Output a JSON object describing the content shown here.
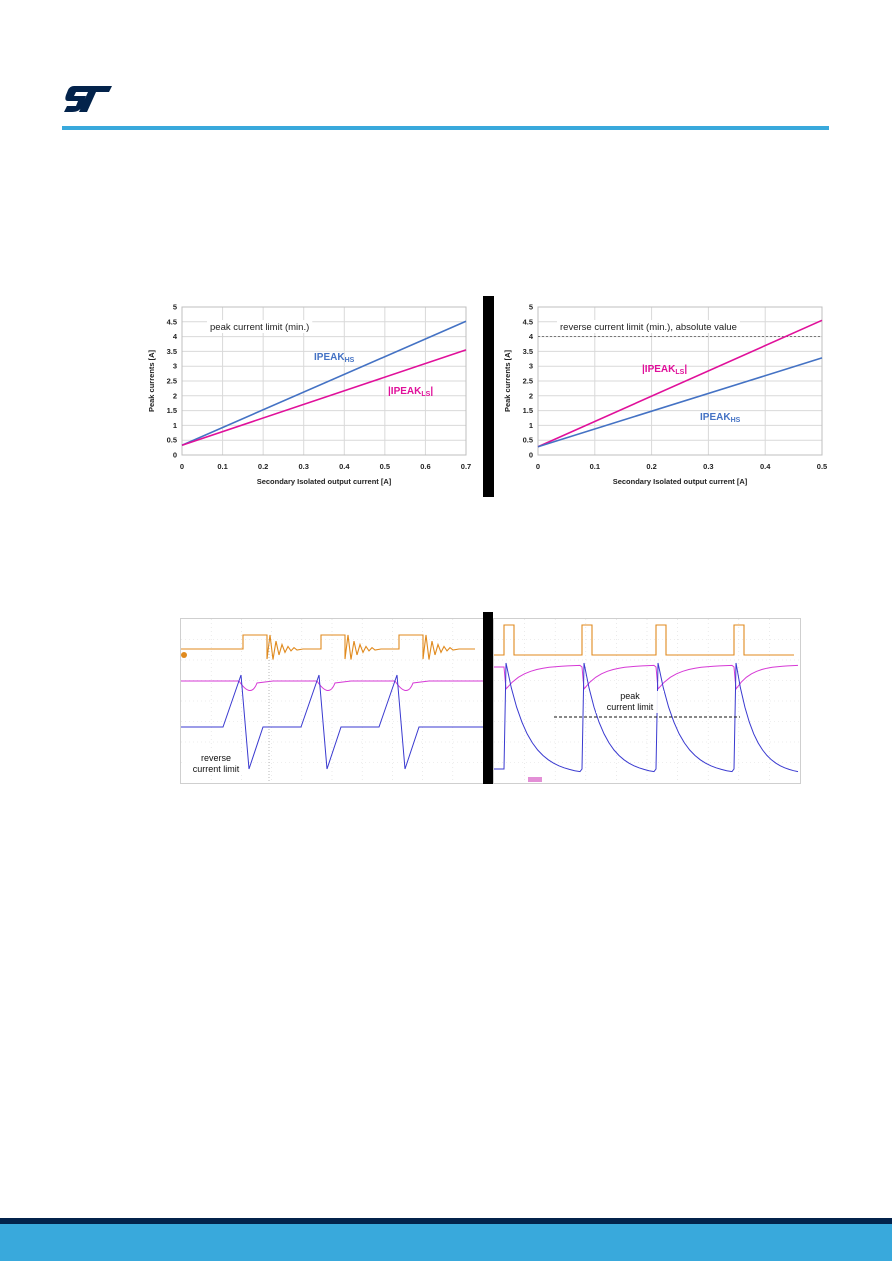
{
  "brand": {
    "logo_text": "ST",
    "color": "#03234b",
    "rule_color": "#39a9dc"
  },
  "chart_data": [
    {
      "type": "line",
      "annotation": "peak current limit (min.)",
      "xlabel": "Secondary Isolated output current [A]",
      "ylabel": "Peak currents [A]",
      "xlim": [
        0,
        0.7
      ],
      "ylim": [
        0,
        5
      ],
      "x_ticks": [
        "0",
        "0.1",
        "0.2",
        "0.3",
        "0.4",
        "0.5",
        "0.6",
        "0.7"
      ],
      "y_ticks": [
        "0",
        "0.5",
        "1",
        "1.5",
        "2",
        "2.5",
        "3",
        "3.5",
        "4",
        "4.5",
        "5"
      ],
      "grid": true,
      "series": [
        {
          "name": "IPEAK",
          "subscript": "HS",
          "prefix": "",
          "suffix": "",
          "color": "#4472c4",
          "x": [
            0,
            0.7
          ],
          "y": [
            0.33,
            4.52
          ]
        },
        {
          "name": "IPEAK",
          "subscript": "LS",
          "prefix": "|",
          "suffix": "|",
          "color": "#e0109a",
          "x": [
            0,
            0.7
          ],
          "y": [
            0.33,
            3.55
          ]
        }
      ]
    },
    {
      "type": "line",
      "annotation": "reverse current limit (min.), absolute value",
      "xlabel": "Secondary Isolated output current [A]",
      "ylabel": "Peak currents [A]",
      "xlim": [
        0,
        0.5
      ],
      "ylim": [
        0,
        5
      ],
      "x_ticks": [
        "0",
        "0.1",
        "0.2",
        "0.3",
        "0.4",
        "0.5"
      ],
      "y_ticks": [
        "0",
        "0.5",
        "1",
        "1.5",
        "2",
        "2.5",
        "3",
        "3.5",
        "4",
        "4.5",
        "5"
      ],
      "grid": true,
      "reference_line_y": 4,
      "series": [
        {
          "name": "IPEAK",
          "subscript": "LS",
          "prefix": "|",
          "suffix": "|",
          "color": "#e0109a",
          "x": [
            0,
            0.5
          ],
          "y": [
            0.28,
            4.55
          ]
        },
        {
          "name": "IPEAK",
          "subscript": "HS",
          "prefix": "",
          "suffix": "",
          "color": "#4472c4",
          "x": [
            0,
            0.5
          ],
          "y": [
            0.28,
            3.28
          ]
        }
      ]
    }
  ],
  "waveforms": {
    "left_label_line1": "reverse",
    "left_label_line2": "current limit",
    "right_label_line1": "peak",
    "right_label_line2": "current limit",
    "colors": {
      "switch_node": "#e08a1e",
      "voltage": "#d63ad6",
      "current": "#3a3ad0"
    }
  }
}
